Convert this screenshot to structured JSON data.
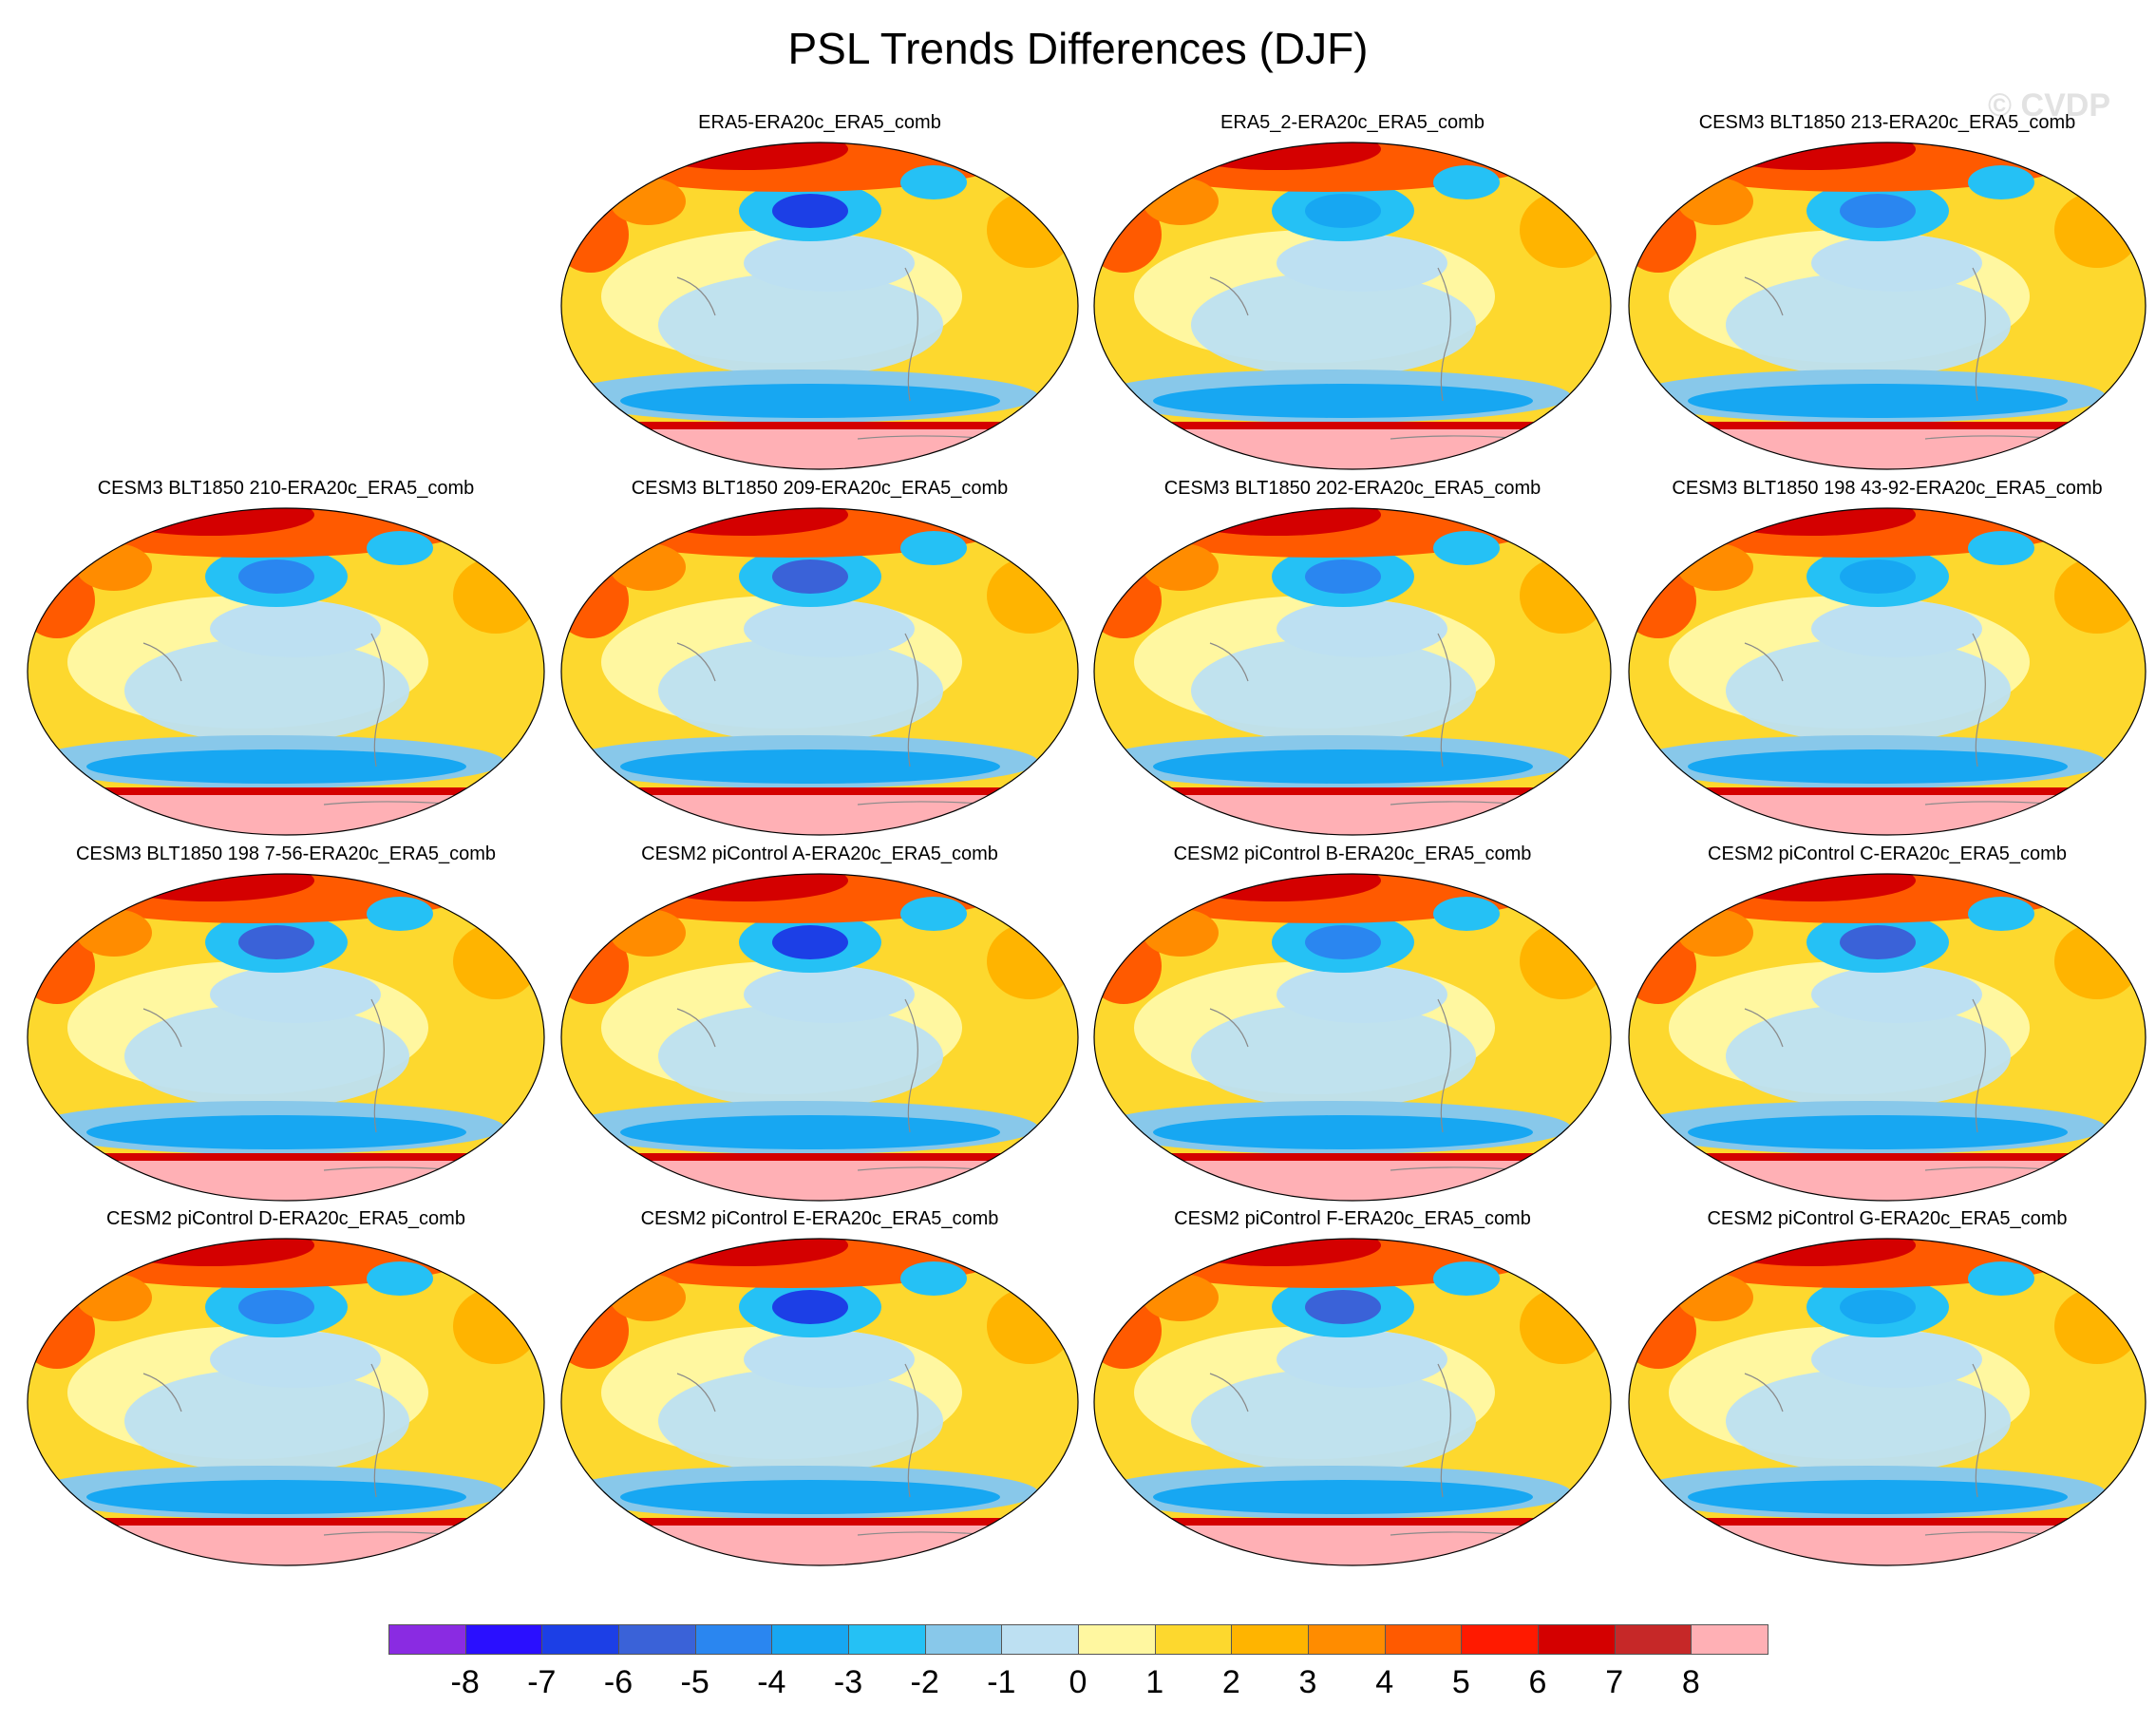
{
  "figure": {
    "title": "PSL Trends Differences (DJF)",
    "watermark": "© CVDP"
  },
  "panels": [
    {
      "title": "ERA5-ERA20c_ERA5_comb",
      "variant": 0
    },
    {
      "title": "ERA5_2-ERA20c_ERA5_comb",
      "variant": 1
    },
    {
      "title": "CESM3 BLT1850 213-ERA20c_ERA5_comb",
      "variant": 2
    },
    {
      "title": "CESM3 BLT1850 210-ERA20c_ERA5_comb",
      "variant": 3
    },
    {
      "title": "CESM3 BLT1850 209-ERA20c_ERA5_comb",
      "variant": 4
    },
    {
      "title": "CESM3 BLT1850 202-ERA20c_ERA5_comb",
      "variant": 5
    },
    {
      "title": "CESM3 BLT1850 198 43-92-ERA20c_ERA5_comb",
      "variant": 6
    },
    {
      "title": "CESM3 BLT1850 198 7-56-ERA20c_ERA5_comb",
      "variant": 7
    },
    {
      "title": "CESM2 piControl A-ERA20c_ERA5_comb",
      "variant": 8
    },
    {
      "title": "CESM2 piControl B-ERA20c_ERA5_comb",
      "variant": 9
    },
    {
      "title": "CESM2 piControl C-ERA20c_ERA5_comb",
      "variant": 10
    },
    {
      "title": "CESM2 piControl D-ERA20c_ERA5_comb",
      "variant": 11
    },
    {
      "title": "CESM2 piControl E-ERA20c_ERA5_comb",
      "variant": 12
    },
    {
      "title": "CESM2 piControl F-ERA20c_ERA5_comb",
      "variant": 13
    },
    {
      "title": "CESM2 piControl G-ERA20c_ERA5_comb",
      "variant": 14
    }
  ],
  "colorbar": {
    "tick_labels": [
      "-8",
      "-7",
      "-6",
      "-5",
      "-4",
      "-3",
      "-2",
      "-1",
      "0",
      "1",
      "2",
      "3",
      "4",
      "5",
      "6",
      "7",
      "8"
    ],
    "colors": [
      "#8a2be2",
      "#2a0fff",
      "#1c3fe6",
      "#3a62d8",
      "#2a86f0",
      "#17a7f2",
      "#25c1f5",
      "#88c8ea",
      "#bde0f2",
      "#fff7a0",
      "#fdd82e",
      "#ffb400",
      "#ff8c00",
      "#ff5a00",
      "#ff1a00",
      "#d40000",
      "#c62828",
      "#ffb0b5"
    ]
  }
}
